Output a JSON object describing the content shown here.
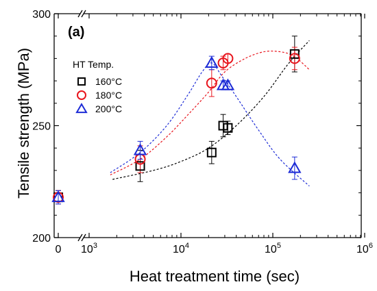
{
  "chart_data": {
    "type": "scatter",
    "panel_label": "(a)",
    "xlabel": "Heat treatment time (sec)",
    "ylabel": "Tensile strength (MPa)",
    "xscale": "log (broken axis: linear 0 segment, then log 10^3–10^6)",
    "ylim": [
      200,
      300
    ],
    "y_ticks": [
      "200",
      "250",
      "300"
    ],
    "x_ticks": [
      {
        "value": 0,
        "base": "0",
        "exp": ""
      },
      {
        "value": 1000,
        "base": "10",
        "exp": "3"
      },
      {
        "value": 10000,
        "base": "10",
        "exp": "4"
      },
      {
        "value": 100000,
        "base": "10",
        "exp": "5"
      },
      {
        "value": 1000000,
        "base": "10",
        "exp": "6"
      }
    ],
    "legend": {
      "title": "HT Temp.",
      "placement": "left"
    },
    "series": [
      {
        "name": "160°C",
        "marker": "square",
        "color": "#000000",
        "points": [
          {
            "x": 0,
            "y": 218,
            "err": 3
          },
          {
            "x": 3600,
            "y": 232,
            "err": 7
          },
          {
            "x": 21600,
            "y": 238,
            "err": 5
          },
          {
            "x": 28800,
            "y": 250,
            "err": 5
          },
          {
            "x": 32400,
            "y": 249,
            "err": 3
          },
          {
            "x": 172800,
            "y": 282,
            "err": 8
          }
        ],
        "fit": [
          [
            1800,
            226
          ],
          [
            5000,
            230
          ],
          [
            10000,
            234
          ],
          [
            20000,
            240
          ],
          [
            40000,
            250
          ],
          [
            80000,
            263
          ],
          [
            150000,
            278
          ],
          [
            250000,
            288
          ]
        ]
      },
      {
        "name": "180°C",
        "marker": "circle",
        "color": "#e8141c",
        "points": [
          {
            "x": 0,
            "y": 218,
            "err": 3
          },
          {
            "x": 3600,
            "y": 235,
            "err": 6
          },
          {
            "x": 21600,
            "y": 269,
            "err": 6
          },
          {
            "x": 28800,
            "y": 278,
            "err": 3
          },
          {
            "x": 32400,
            "y": 280,
            "err": 2
          },
          {
            "x": 172800,
            "y": 280,
            "err": 5
          }
        ],
        "fit": [
          [
            1700,
            228
          ],
          [
            3600,
            235
          ],
          [
            7000,
            245
          ],
          [
            12000,
            255
          ],
          [
            20000,
            265
          ],
          [
            30000,
            274
          ],
          [
            50000,
            280
          ],
          [
            80000,
            283
          ],
          [
            120000,
            283
          ],
          [
            170000,
            281
          ],
          [
            250000,
            275
          ]
        ]
      },
      {
        "name": "200°C",
        "marker": "triangle",
        "color": "#1c2bd6",
        "points": [
          {
            "x": 0,
            "y": 218,
            "err": 3
          },
          {
            "x": 3600,
            "y": 239,
            "err": 4
          },
          {
            "x": 21600,
            "y": 278,
            "err": 3
          },
          {
            "x": 28800,
            "y": 268,
            "err": 2
          },
          {
            "x": 32400,
            "y": 268,
            "err": 2
          },
          {
            "x": 172800,
            "y": 231,
            "err": 5
          }
        ],
        "fit": [
          [
            1700,
            229
          ],
          [
            3600,
            238
          ],
          [
            7000,
            250
          ],
          [
            12000,
            264
          ],
          [
            17000,
            274
          ],
          [
            21600,
            278
          ],
          [
            28000,
            272
          ],
          [
            40000,
            263
          ],
          [
            70000,
            248
          ],
          [
            120000,
            235
          ],
          [
            250000,
            223
          ]
        ]
      }
    ]
  }
}
